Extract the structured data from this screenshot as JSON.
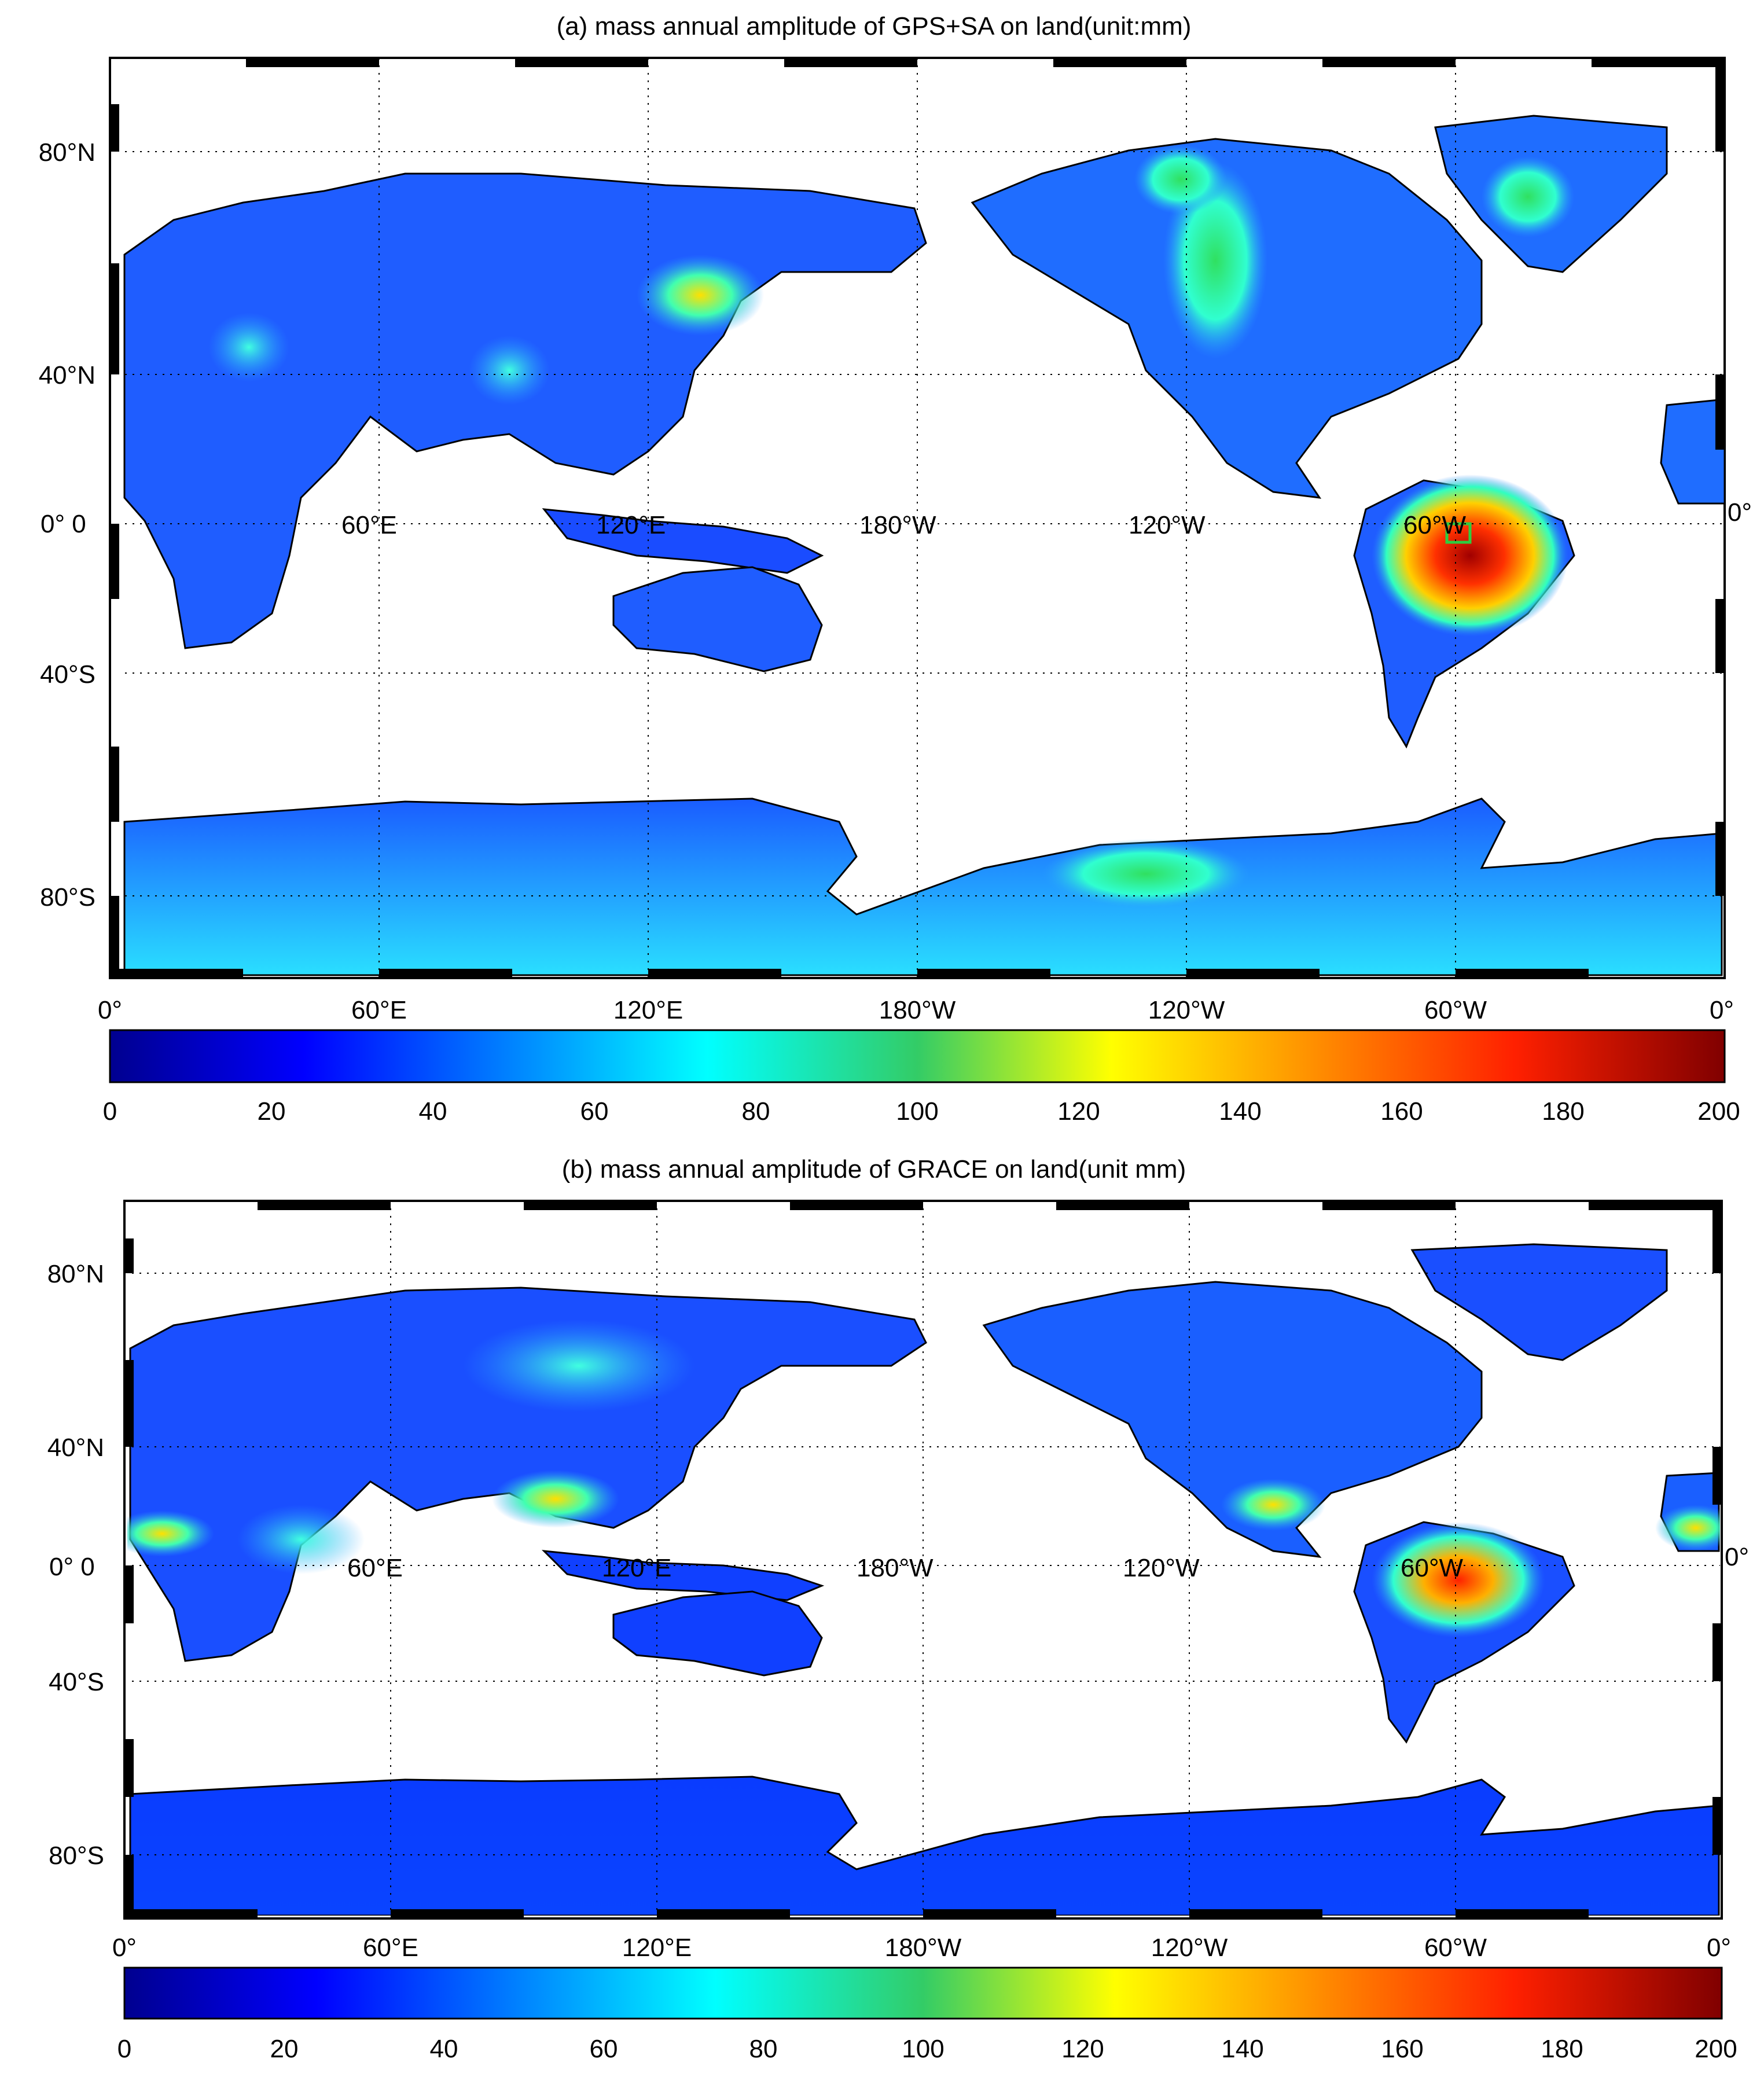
{
  "figure": {
    "panels": [
      {
        "id": "a",
        "title": "(a) mass annual amplitude of GPS+SA on land(unit:mm)",
        "x_tick_labels": [
          "0°",
          "60°E",
          "120°E",
          "180°W",
          "120°W",
          "60°W",
          "0°"
        ],
        "x_inner_labels": [
          "0° 0",
          "60°E",
          "120°E",
          "180°W",
          "120°W",
          "60°W",
          "0°"
        ],
        "y_tick_labels": [
          "80°N",
          "40°N",
          "40°S",
          "80°S"
        ],
        "colorbar": {
          "range": [
            0,
            200
          ],
          "ticks": [
            "0",
            "20",
            "40",
            "60",
            "80",
            "100",
            "120",
            "140",
            "160",
            "180",
            "200"
          ],
          "colormap": "jet"
        },
        "highlight_box": {
          "label": "Amazon basin marker",
          "color": "#2ecc40"
        }
      },
      {
        "id": "b",
        "title": "(b) mass annual amplitude of GRACE on  land(unit mm)",
        "x_tick_labels": [
          "0°",
          "60°E",
          "120°E",
          "180°W",
          "120°W",
          "60°W",
          "0°"
        ],
        "x_inner_labels": [
          "0° 0",
          "60°E",
          "120°E",
          "180°W",
          "120°W",
          "60°W",
          "0°"
        ],
        "y_tick_labels": [
          "80°N",
          "40°N",
          "40°S",
          "80°S"
        ],
        "colorbar": {
          "range": [
            0,
            200
          ],
          "ticks": [
            "0",
            "20",
            "40",
            "60",
            "80",
            "100",
            "120",
            "140",
            "160",
            "180",
            "200"
          ],
          "colormap": "jet"
        }
      }
    ],
    "colors": {
      "land_low": "#1f4fff",
      "land_mid": "#2fd6ff",
      "hotspot": "#c00000",
      "ocean": "#ffffff",
      "coast": "#000000"
    }
  }
}
